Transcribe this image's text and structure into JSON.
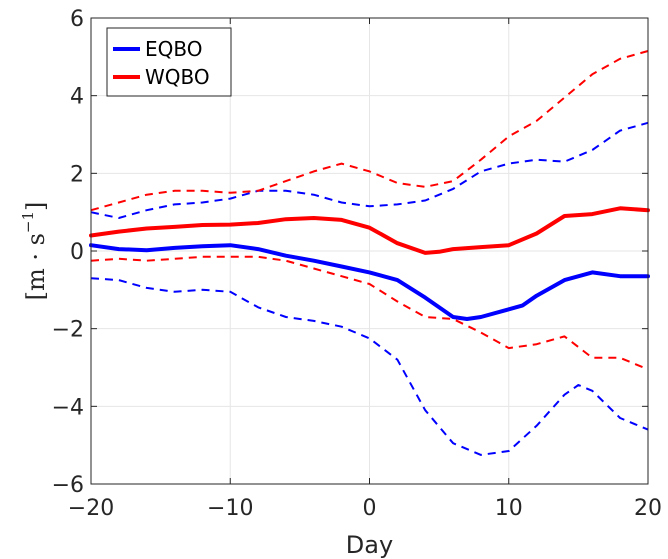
{
  "chart_data": {
    "type": "line",
    "xlabel": "Day",
    "ylabel": "[m · s",
    "ylabel_exponent": "−1",
    "ylabel_close": "]",
    "xlim": [
      -20,
      20
    ],
    "ylim": [
      -6,
      6
    ],
    "xticks": [
      -20,
      -10,
      0,
      10,
      20
    ],
    "xtick_labels": [
      "−20",
      "−10",
      "0",
      "10",
      "20"
    ],
    "yticks": [
      -6,
      -4,
      -2,
      0,
      2,
      4,
      6
    ],
    "ytick_labels": [
      "−6",
      "−4",
      "−2",
      "0",
      "2",
      "4",
      "6"
    ],
    "grid": true,
    "legend_position": "top-left",
    "series": [
      {
        "name": "EQBO",
        "color": "#0000ff",
        "style": "solid",
        "x": [
          -20,
          -18,
          -16,
          -14,
          -12,
          -10,
          -8,
          -6,
          -4,
          -2,
          0,
          2,
          4,
          6,
          7,
          8,
          10,
          11,
          12,
          14,
          16,
          18,
          20
        ],
        "y": [
          0.15,
          0.05,
          0.02,
          0.08,
          0.12,
          0.15,
          0.05,
          -0.12,
          -0.25,
          -0.4,
          -0.55,
          -0.75,
          -1.2,
          -1.7,
          -1.75,
          -1.7,
          -1.5,
          -1.4,
          -1.15,
          -0.75,
          -0.55,
          -0.65,
          -0.65
        ]
      },
      {
        "name": "",
        "color": "#0000ff",
        "style": "dashed",
        "x": [
          -20,
          -18,
          -16,
          -14,
          -12,
          -10,
          -8,
          -6,
          -4,
          -2,
          0,
          2,
          4,
          6,
          8,
          10,
          12,
          14,
          16,
          18,
          20
        ],
        "y": [
          1.0,
          0.85,
          1.05,
          1.2,
          1.25,
          1.35,
          1.55,
          1.55,
          1.45,
          1.25,
          1.15,
          1.2,
          1.3,
          1.6,
          2.05,
          2.25,
          2.35,
          2.3,
          2.6,
          3.1,
          3.3
        ]
      },
      {
        "name": "",
        "color": "#0000ff",
        "style": "dashed",
        "x": [
          -20,
          -18,
          -16,
          -14,
          -12,
          -10,
          -8,
          -6,
          -4,
          -2,
          0,
          2,
          4,
          6,
          8,
          10,
          12,
          14,
          15,
          16,
          18,
          20
        ],
        "y": [
          -0.7,
          -0.75,
          -0.95,
          -1.05,
          -1.0,
          -1.05,
          -1.45,
          -1.7,
          -1.8,
          -1.95,
          -2.25,
          -2.8,
          -4.1,
          -4.95,
          -5.25,
          -5.15,
          -4.5,
          -3.7,
          -3.45,
          -3.6,
          -4.3,
          -4.6
        ]
      },
      {
        "name": "WQBO",
        "color": "#ff0000",
        "style": "solid",
        "x": [
          -20,
          -18,
          -16,
          -14,
          -12,
          -10,
          -8,
          -6,
          -4,
          -2,
          0,
          2,
          4,
          5,
          6,
          8,
          10,
          12,
          14,
          16,
          18,
          20
        ],
        "y": [
          0.4,
          0.5,
          0.58,
          0.62,
          0.67,
          0.68,
          0.72,
          0.82,
          0.85,
          0.8,
          0.6,
          0.2,
          -0.05,
          -0.02,
          0.05,
          0.1,
          0.15,
          0.45,
          0.9,
          0.95,
          1.1,
          1.05
        ]
      },
      {
        "name": "",
        "color": "#ff0000",
        "style": "dashed",
        "x": [
          -20,
          -18,
          -16,
          -14,
          -12,
          -10,
          -8,
          -6,
          -4,
          -2,
          0,
          2,
          4,
          6,
          8,
          10,
          12,
          14,
          16,
          18,
          20
        ],
        "y": [
          1.05,
          1.25,
          1.45,
          1.55,
          1.55,
          1.5,
          1.55,
          1.8,
          2.05,
          2.25,
          2.05,
          1.75,
          1.65,
          1.8,
          2.35,
          2.95,
          3.35,
          3.95,
          4.55,
          4.95,
          5.15
        ]
      },
      {
        "name": "",
        "color": "#ff0000",
        "style": "dashed",
        "x": [
          -20,
          -18,
          -16,
          -14,
          -12,
          -10,
          -8,
          -6,
          -4,
          -2,
          0,
          2,
          4,
          6,
          8,
          10,
          12,
          14,
          16,
          18,
          20
        ],
        "y": [
          -0.25,
          -0.2,
          -0.25,
          -0.2,
          -0.15,
          -0.15,
          -0.15,
          -0.25,
          -0.45,
          -0.65,
          -0.85,
          -1.3,
          -1.7,
          -1.75,
          -2.1,
          -2.5,
          -2.4,
          -2.2,
          -2.75,
          -2.75,
          -3.05
        ]
      }
    ]
  }
}
